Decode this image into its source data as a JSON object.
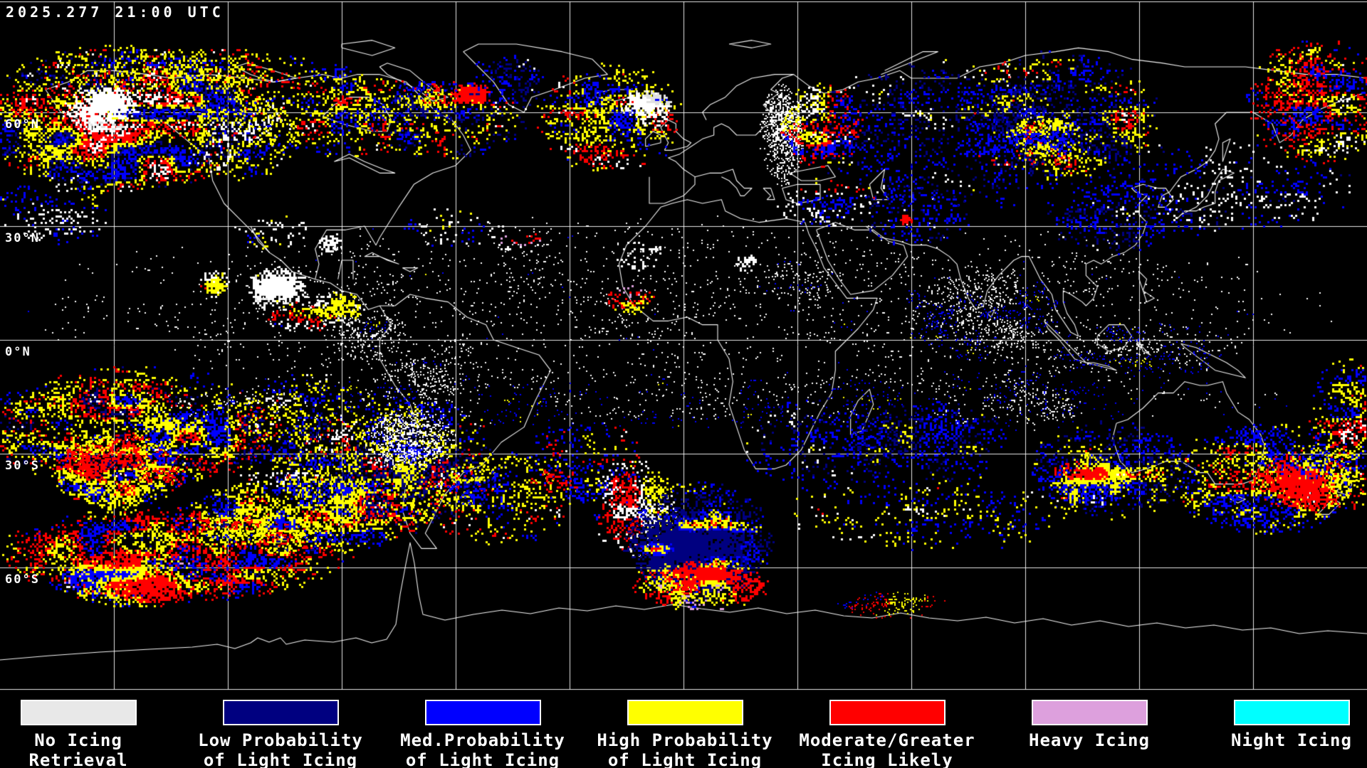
{
  "header": {
    "timestamp": "2025.277 21:00 UTC"
  },
  "map": {
    "latitude_labels": [
      {
        "text": "60°N",
        "lat": 60
      },
      {
        "text": "30°N",
        "lat": 30
      },
      {
        "text": "0°N",
        "lat": 0
      },
      {
        "text": "30°S",
        "lat": -30
      },
      {
        "text": "60°S",
        "lat": -60
      }
    ]
  },
  "legend": {
    "items": [
      {
        "line1": "No Icing",
        "line2": "Retrieval",
        "color": "#e8e8e8"
      },
      {
        "line1": "Low Probability",
        "line2": "of Light Icing",
        "color": "#000080"
      },
      {
        "line1": "Med.Probability",
        "line2": "of Light Icing",
        "color": "#0000ff"
      },
      {
        "line1": "High Probability",
        "line2": "of Light Icing",
        "color": "#ffff00"
      },
      {
        "line1": "Moderate/Greater",
        "line2": "Icing Likely",
        "color": "#ff0000"
      },
      {
        "line1": "Heavy Icing",
        "line2": "",
        "color": "#dda0dd"
      },
      {
        "line1": "Night Icing",
        "line2": "",
        "color": "#00ffff"
      }
    ]
  }
}
